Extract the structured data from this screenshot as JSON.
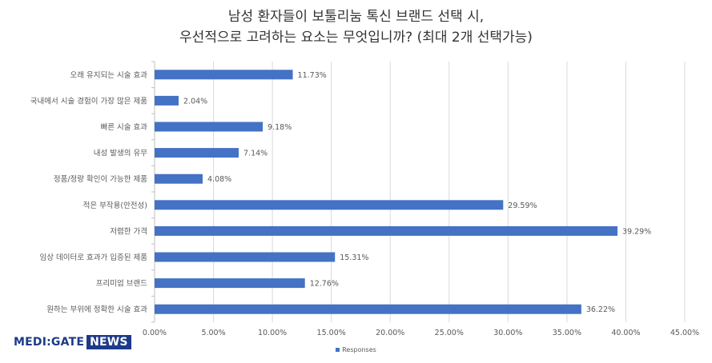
{
  "chart_data": {
    "type": "bar",
    "orientation": "horizontal",
    "title_lines": [
      "남성 환자들이 보툴리눔 톡신 브랜드 선택 시,",
      "우선적으로 고려하는 요소는 무엇입니까? (최대 2개 선택가능)"
    ],
    "categories": [
      "오래 유지되는 시술 효과",
      "국내에서 시술 경험이 가장 많은 제품",
      "빠른 시술 효과",
      "내성 발생의 유무",
      "정품/정량 확인이 가능한 제품",
      "적은 부작용(안전성)",
      "저렴한 가격",
      "임상 데이터로 효과가 입증된 제품",
      "프리미엄 브랜드",
      "원하는 부위에 정확한 시술 효과"
    ],
    "series": [
      {
        "name": "Responses",
        "values": [
          11.73,
          2.04,
          9.18,
          7.14,
          4.08,
          29.59,
          39.29,
          15.31,
          12.76,
          36.22
        ],
        "labels": [
          "11.73%",
          "2.04%",
          "9.18%",
          "7.14%",
          "4.08%",
          "29.59%",
          "39.29%",
          "15.31%",
          "12.76%",
          "36.22%"
        ]
      }
    ],
    "xlim": [
      0,
      45
    ],
    "x_ticks": [
      0,
      5,
      10,
      15,
      20,
      25,
      30,
      35,
      40,
      45
    ],
    "x_tick_labels": [
      "0.00%",
      "5.00%",
      "10.00%",
      "15.00%",
      "20.00%",
      "25.00%",
      "30.00%",
      "35.00%",
      "40.00%",
      "45.00%"
    ],
    "grid": true,
    "legend_position": "bottom",
    "colors": {
      "bar": "#4472c4",
      "grid": "#d9d9d9",
      "text": "#595959",
      "axis": "#bfbfbf"
    }
  },
  "logo": {
    "part1": "MEDI:GATE",
    "part2": "NEWS"
  }
}
